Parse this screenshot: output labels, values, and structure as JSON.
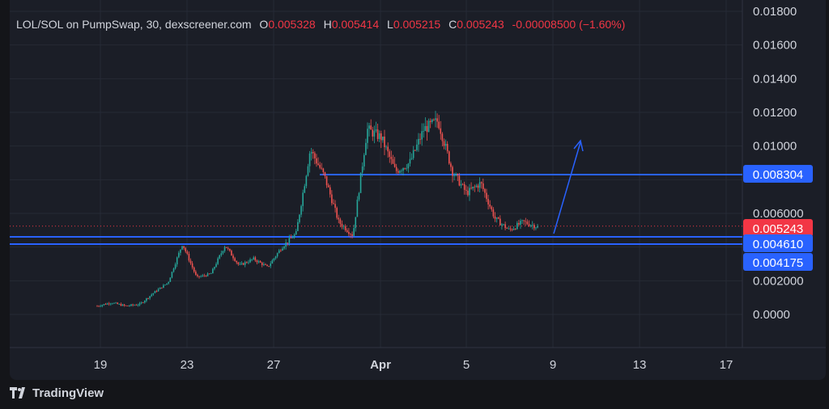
{
  "legend": {
    "symbol": "LOL/SOL on PumpSwap, 30, dexscreener.com",
    "open_key": "O",
    "open": "0.005328",
    "high_key": "H",
    "high": "0.005414",
    "low_key": "L",
    "low": "0.005215",
    "close_key": "C",
    "close": "0.005243",
    "change": "-0.00008500 (−1.60%)"
  },
  "chart_data": {
    "type": "candlestick",
    "y_ticks": [
      "0.01800",
      "0.01600",
      "0.01400",
      "0.01200",
      "0.01000",
      "0.006000",
      "0.002000",
      "0.0000"
    ],
    "x_ticks": [
      "19",
      "23",
      "27",
      "Apr",
      "5",
      "9",
      "13",
      "17"
    ],
    "ylim": [
      -0.0018,
      0.0184
    ],
    "price_labels": [
      {
        "value": "0.008304",
        "color": "#2962ff"
      },
      {
        "value": "0.005243",
        "color": "#f23645"
      },
      {
        "value": "0.004610",
        "color": "#2962ff"
      },
      {
        "value": "0.004175",
        "color": "#2962ff"
      }
    ],
    "horizontal_lines": [
      0.008304,
      0.00461,
      0.004175
    ],
    "last_price": 0.005243,
    "price_path_approx": [
      0.0005,
      0.0007,
      0.0005,
      0.0006,
      0.0013,
      0.0019,
      0.0042,
      0.0022,
      0.0024,
      0.0041,
      0.0029,
      0.0033,
      0.0028,
      0.004,
      0.0048,
      0.0098,
      0.0082,
      0.0055,
      0.0047,
      0.011,
      0.0105,
      0.0085,
      0.009,
      0.011,
      0.0115,
      0.0085,
      0.0072,
      0.0078,
      0.0057,
      0.005,
      0.0055,
      0.0052
    ],
    "up_color": "#26a69a",
    "down_color": "#ef5350",
    "annotation_arrow_color": "#2962ff"
  },
  "branding": {
    "text": "TradingView"
  }
}
